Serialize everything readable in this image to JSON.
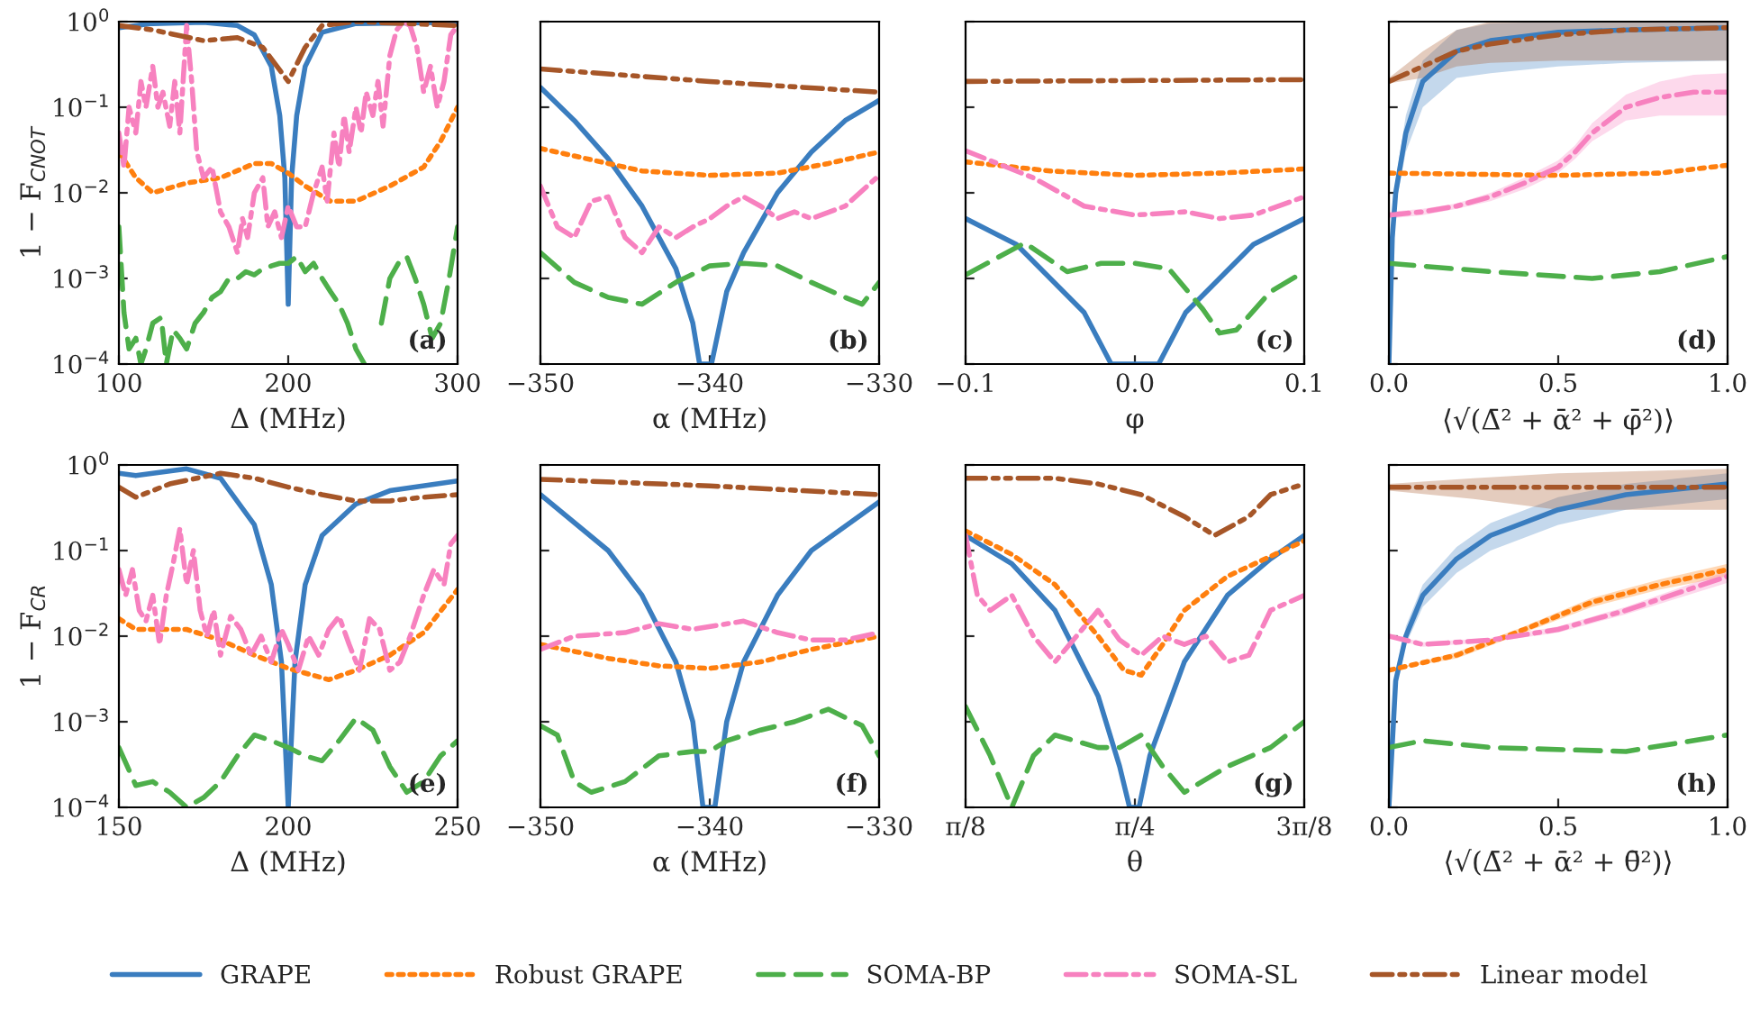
{
  "chart_data": [
    {
      "type": "line",
      "log": "y",
      "xlabel": "Δ (MHz)",
      "ylabel": "1 − F$_{CNOT}$",
      "xlim": [
        100,
        300
      ],
      "xticks": [
        100,
        200,
        300
      ],
      "ylim": [
        0.0001,
        1
      ],
      "yticks": [
        {
          "value": 1,
          "label": "10$^{0}$"
        },
        {
          "value": 0.1,
          "label": "10$^{−1}$"
        },
        {
          "value": 0.01,
          "label": "10$^{−2}$"
        },
        {
          "value": 0.001,
          "label": "10$^{−3}$"
        },
        {
          "value": 0.0001,
          "label": "10$^{−4}$"
        }
      ],
      "legend": "bottom",
      "annotations": [
        "(a)"
      ],
      "series": [
        {
          "name": "GRAPE",
          "color": "#3a7dbf",
          "line_style": "solid",
          "x": [
            100,
            120,
            150,
            170,
            180,
            190,
            195,
            198,
            200,
            202,
            205,
            210,
            220,
            240,
            300
          ],
          "values": [
            0.85,
            0.95,
            0.98,
            0.9,
            0.7,
            0.3,
            0.08,
            0.015,
            0.0005,
            0.015,
            0.08,
            0.3,
            0.75,
            0.95,
            0.98
          ]
        },
        {
          "name": "Robust GRAPE",
          "color": "#ff7f0e",
          "line_style": "dotted",
          "x": [
            100,
            110,
            120,
            140,
            160,
            180,
            190,
            200,
            210,
            225,
            240,
            260,
            280,
            290,
            300
          ],
          "values": [
            0.03,
            0.015,
            0.01,
            0.013,
            0.015,
            0.022,
            0.022,
            0.017,
            0.012,
            0.008,
            0.008,
            0.012,
            0.02,
            0.04,
            0.1
          ]
        },
        {
          "name": "SOMA-BP",
          "color": "#4daf4a",
          "line_style": "dashed",
          "x": [
            100,
            103,
            106,
            110,
            113,
            116,
            120,
            125,
            128,
            132,
            136,
            140,
            145,
            150,
            155,
            160,
            165,
            170,
            175,
            180,
            185,
            190,
            195,
            200,
            205,
            210,
            215,
            220,
            225,
            230,
            235,
            240,
            245,
            250,
            255,
            260,
            265,
            270,
            275,
            280,
            285,
            290,
            295,
            300
          ],
          "values": [
            0.004,
            0.0004,
            0.00015,
            0.0002,
            0.0001,
            0.00015,
            0.0003,
            0.00035,
            0.0001,
            0.00025,
            0.0002,
            0.00015,
            0.0003,
            0.0004,
            0.0006,
            0.0007,
            0.001,
            0.001,
            0.0012,
            0.0011,
            0.0013,
            0.0014,
            0.0015,
            0.0015,
            0.0018,
            0.0012,
            0.0015,
            0.001,
            0.0007,
            0.0005,
            0.0003,
            0.00015,
            0.0001,
            null,
            0.0003,
            0.001,
            0.0015,
            0.0018,
            0.001,
            0.0005,
            0.0002,
            0.0003,
            0.001,
            0.004
          ]
        },
        {
          "name": "SOMA-SL",
          "color": "#f781bf",
          "line_style": "dashdot",
          "x": [
            100,
            103,
            106,
            110,
            113,
            116,
            120,
            123,
            126,
            130,
            133,
            136,
            140,
            143,
            146,
            150,
            155,
            160,
            165,
            170,
            173,
            176,
            180,
            185,
            188,
            192,
            196,
            200,
            205,
            210,
            215,
            220,
            223,
            227,
            230,
            233,
            236,
            240,
            243,
            246,
            250,
            253,
            256,
            260,
            264,
            268,
            272,
            276,
            280,
            284,
            288,
            292,
            296,
            300
          ],
          "values": [
            0.05,
            0.02,
            0.1,
            0.05,
            0.2,
            0.1,
            0.3,
            0.1,
            0.15,
            0.06,
            0.2,
            0.05,
            0.9,
            0.2,
            0.03,
            0.015,
            0.02,
            0.006,
            0.004,
            0.002,
            0.005,
            0.003,
            0.01,
            0.015,
            0.004,
            0.006,
            0.003,
            0.007,
            0.004,
            0.004,
            0.01,
            0.02,
            0.008,
            0.05,
            0.02,
            0.08,
            0.03,
            0.1,
            0.05,
            0.15,
            0.08,
            0.2,
            0.06,
            0.4,
            0.8,
            1.0,
            0.9,
            0.5,
            0.15,
            0.3,
            0.1,
            0.2,
            0.7,
            0.9
          ]
        },
        {
          "name": "Linear model",
          "color": "#a65628",
          "line_style": "dashdotdot",
          "x": [
            100,
            120,
            150,
            170,
            185,
            200,
            210,
            220,
            240,
            300
          ],
          "values": [
            0.9,
            0.8,
            0.6,
            0.65,
            0.5,
            0.2,
            0.5,
            0.9,
            1.0,
            0.9
          ]
        }
      ]
    },
    {
      "type": "line",
      "log": "y",
      "xlabel": "α (MHz)",
      "xlim": [
        -350,
        -330
      ],
      "xticks": [
        {
          "value": -350,
          "label": "−350"
        },
        {
          "value": -340,
          "label": "−340"
        },
        {
          "value": -330,
          "label": "−330"
        }
      ],
      "ylim": [
        0.0001,
        1
      ],
      "yticks": [
        1,
        0.1,
        0.01,
        0.001,
        0.0001
      ],
      "tick_labels": "x",
      "annotations": [
        "(b)"
      ],
      "series": [
        {
          "color": "#3a7dbf",
          "line_style": "solid",
          "x": [
            -350,
            -348,
            -346,
            -344,
            -342,
            -341,
            -340.6,
            -339.9,
            -339,
            -338,
            -336,
            -334,
            -332,
            -330
          ],
          "values": [
            0.17,
            0.07,
            0.025,
            0.007,
            0.0013,
            0.0003,
            0.0001,
            0.0001,
            0.0007,
            0.002,
            0.01,
            0.03,
            0.07,
            0.12
          ]
        },
        {
          "color": "#ff7f0e",
          "line_style": "dotted",
          "x": [
            -350,
            -346,
            -344,
            -340,
            -336,
            -333,
            -330
          ],
          "values": [
            0.033,
            0.022,
            0.018,
            0.016,
            0.017,
            0.022,
            0.03
          ]
        },
        {
          "color": "#4daf4a",
          "line_style": "dashed",
          "x": [
            -350,
            -348,
            -346,
            -344,
            -342,
            -340,
            -338,
            -336,
            -334,
            -332,
            -331,
            -330
          ],
          "values": [
            0.002,
            0.0009,
            0.0006,
            0.0005,
            0.0009,
            0.0014,
            0.0015,
            0.0014,
            0.0009,
            0.0006,
            0.0005,
            0.0009
          ]
        },
        {
          "color": "#f781bf",
          "line_style": "dashdot",
          "x": [
            -350,
            -349,
            -348,
            -347,
            -346,
            -345,
            -344,
            -343,
            -342,
            -341,
            -340,
            -339,
            -338,
            -337,
            -336,
            -335,
            -334,
            -332,
            -330
          ],
          "values": [
            0.012,
            0.004,
            0.003,
            0.008,
            0.009,
            0.003,
            0.002,
            0.004,
            0.003,
            0.004,
            0.005,
            0.007,
            0.009,
            0.007,
            0.005,
            0.006,
            0.005,
            0.007,
            0.016
          ]
        },
        {
          "color": "#a65628",
          "line_style": "dashdotdot",
          "x": [
            -350,
            -340,
            -330
          ],
          "values": [
            0.28,
            0.2,
            0.15
          ]
        }
      ]
    },
    {
      "type": "line",
      "log": "y",
      "xlabel": "φ",
      "xlim": [
        -0.1,
        0.1
      ],
      "xticks": [
        {
          "value": -0.1,
          "label": "−0.1"
        },
        {
          "value": 0,
          "label": "0.0"
        },
        {
          "value": 0.1,
          "label": "0.1"
        }
      ],
      "ylim": [
        0.0001,
        1
      ],
      "yticks": [
        1,
        0.1,
        0.01,
        0.001,
        0.0001
      ],
      "tick_labels": "x",
      "annotations": [
        "(c)"
      ],
      "series": [
        {
          "color": "#3a7dbf",
          "line_style": "solid",
          "x": [
            -0.1,
            -0.07,
            -0.05,
            -0.03,
            -0.014,
            0.014,
            0.03,
            0.05,
            0.07,
            0.1
          ],
          "values": [
            0.005,
            0.0025,
            0.001,
            0.0004,
            0.0001,
            0.0001,
            0.0004,
            0.001,
            0.0025,
            0.005
          ]
        },
        {
          "color": "#ff7f0e",
          "line_style": "dotted",
          "x": [
            -0.1,
            -0.05,
            0,
            0.05,
            0.1
          ],
          "values": [
            0.023,
            0.018,
            0.016,
            0.017,
            0.019
          ]
        },
        {
          "color": "#4daf4a",
          "line_style": "dashed",
          "x": [
            -0.1,
            -0.065,
            -0.04,
            -0.02,
            0,
            0.02,
            0.04,
            0.05,
            0.06,
            0.08,
            0.1
          ],
          "values": [
            0.0011,
            0.0026,
            0.0012,
            0.0015,
            0.0015,
            0.0013,
            0.00044,
            0.00023,
            0.00025,
            0.0007,
            0.0012
          ]
        },
        {
          "color": "#f781bf",
          "line_style": "dashdot",
          "x": [
            -0.1,
            -0.06,
            -0.03,
            0,
            0.03,
            0.05,
            0.07,
            0.1
          ],
          "values": [
            0.031,
            0.015,
            0.007,
            0.0055,
            0.006,
            0.005,
            0.0055,
            0.009
          ]
        },
        {
          "color": "#a65628",
          "line_style": "dashdotdot",
          "x": [
            -0.1,
            0.1
          ],
          "values": [
            0.2,
            0.21
          ]
        }
      ]
    },
    {
      "type": "line",
      "log": "y",
      "xlabel": "⟨√(Δ̄² + ᾱ² + φ̄²)⟩",
      "xlim": [
        0,
        1
      ],
      "xticks": [
        {
          "value": 0,
          "label": "0.0"
        },
        {
          "value": 0.5,
          "label": "0.5"
        },
        {
          "value": 1,
          "label": "1.0"
        }
      ],
      "ylim": [
        0.0001,
        1
      ],
      "yticks": [
        1,
        0.1,
        0.01,
        0.001,
        0.0001
      ],
      "tick_labels": "x",
      "annotations": [
        "(d)"
      ],
      "series": [
        {
          "color": "#3a7dbf",
          "line_style": "solid",
          "x": [
            0,
            0.01,
            0.02,
            0.05,
            0.1,
            0.2,
            0.3,
            0.5,
            0.7,
            1.0
          ],
          "values": [
            0.0001,
            0.003,
            0.01,
            0.05,
            0.2,
            0.45,
            0.6,
            0.75,
            0.8,
            0.85
          ],
          "lower": [
            0.0001,
            0.002,
            0.007,
            0.03,
            0.1,
            0.22,
            0.25,
            0.3,
            0.33,
            0.35
          ],
          "upper": [
            0.0001,
            0.004,
            0.014,
            0.08,
            0.35,
            0.8,
            0.95,
            1.0,
            1.0,
            1.0
          ]
        },
        {
          "color": "#ff7f0e",
          "line_style": "dotted",
          "x": [
            0,
            0.5,
            0.8,
            1.0
          ],
          "values": [
            0.017,
            0.016,
            0.017,
            0.021
          ]
        },
        {
          "color": "#4daf4a",
          "line_style": "dashed",
          "x": [
            0,
            0.3,
            0.6,
            0.8,
            1.0
          ],
          "values": [
            0.0015,
            0.0012,
            0.001,
            0.0012,
            0.0018
          ]
        },
        {
          "color": "#f781bf",
          "line_style": "dashdot",
          "x": [
            0,
            0.1,
            0.2,
            0.3,
            0.4,
            0.5,
            0.55,
            0.6,
            0.7,
            0.8,
            0.9,
            1.0
          ],
          "values": [
            0.0055,
            0.006,
            0.007,
            0.009,
            0.013,
            0.02,
            0.03,
            0.05,
            0.1,
            0.13,
            0.15,
            0.15
          ],
          "lower": [
            0.005,
            0.0055,
            0.0065,
            0.008,
            0.011,
            0.017,
            0.025,
            0.04,
            0.07,
            0.08,
            0.08,
            0.08
          ],
          "upper": [
            0.006,
            0.0065,
            0.0075,
            0.01,
            0.015,
            0.024,
            0.036,
            0.065,
            0.14,
            0.2,
            0.24,
            0.25
          ]
        },
        {
          "color": "#a65628",
          "line_style": "dashdotdot",
          "x": [
            0,
            0.1,
            0.2,
            0.3,
            0.5,
            0.7,
            1.0
          ],
          "values": [
            0.2,
            0.3,
            0.45,
            0.55,
            0.7,
            0.8,
            0.85
          ],
          "lower": [
            0.19,
            0.22,
            0.3,
            0.33,
            0.35,
            0.35,
            0.35
          ],
          "upper": [
            0.22,
            0.45,
            0.8,
            1.0,
            1.0,
            1.0,
            1.0
          ]
        }
      ]
    },
    {
      "type": "line",
      "log": "y",
      "xlabel": "Δ (MHz)",
      "ylabel": "1 − F$_{CR}$",
      "xlim": [
        150,
        250
      ],
      "xticks": [
        150,
        200,
        250
      ],
      "ylim": [
        0.0001,
        1
      ],
      "yticks": [
        {
          "value": 1,
          "label": "10$^{0}$"
        },
        {
          "value": 0.1,
          "label": "10$^{−1}$"
        },
        {
          "value": 0.01,
          "label": "10$^{−2}$"
        },
        {
          "value": 0.001,
          "label": "10$^{−3}$"
        },
        {
          "value": 0.0001,
          "label": "10$^{−4}$"
        }
      ],
      "annotations": [
        "(e)"
      ],
      "series": [
        {
          "color": "#3a7dbf",
          "line_style": "solid",
          "x": [
            150,
            155,
            170,
            180,
            190,
            195,
            198,
            200,
            202,
            205,
            210,
            220,
            230,
            250
          ],
          "values": [
            0.8,
            0.75,
            0.9,
            0.7,
            0.2,
            0.04,
            0.005,
            0.0001,
            0.005,
            0.04,
            0.15,
            0.35,
            0.5,
            0.65
          ]
        },
        {
          "color": "#ff7f0e",
          "line_style": "dotted",
          "x": [
            150,
            155,
            170,
            180,
            190,
            200,
            205,
            212,
            220,
            230,
            240,
            250
          ],
          "values": [
            0.016,
            0.012,
            0.012,
            0.009,
            0.006,
            0.0042,
            0.0037,
            0.0031,
            0.004,
            0.006,
            0.011,
            0.035
          ]
        },
        {
          "color": "#4daf4a",
          "line_style": "dashed",
          "x": [
            150,
            155,
            160,
            165,
            170,
            175,
            180,
            185,
            190,
            195,
            200,
            205,
            210,
            215,
            220,
            225,
            230,
            235,
            240,
            245,
            250
          ],
          "values": [
            0.0005,
            0.00018,
            0.0002,
            0.00015,
            0.0001,
            0.00013,
            0.0002,
            0.0004,
            0.0007,
            0.0006,
            0.0005,
            0.0004,
            0.00035,
            0.0006,
            0.0011,
            0.0008,
            0.0003,
            0.00015,
            0.0002,
            0.0004,
            0.0006
          ]
        },
        {
          "color": "#f781bf",
          "line_style": "dashdot",
          "x": [
            150,
            152,
            154,
            156,
            158,
            160,
            162,
            164,
            166,
            168,
            170,
            172,
            174,
            176,
            178,
            180,
            183,
            186,
            189,
            192,
            195,
            198,
            200,
            203,
            206,
            209,
            212,
            215,
            218,
            221,
            224,
            227,
            230,
            233,
            236,
            240,
            243,
            246,
            248,
            250
          ],
          "values": [
            0.06,
            0.03,
            0.06,
            0.02,
            0.015,
            0.03,
            0.008,
            0.03,
            0.07,
            0.18,
            0.04,
            0.1,
            0.02,
            0.01,
            0.02,
            0.006,
            0.017,
            0.012,
            0.006,
            0.01,
            0.005,
            0.012,
            0.008,
            0.004,
            0.01,
            0.006,
            0.012,
            0.017,
            0.008,
            0.004,
            0.016,
            0.012,
            0.004,
            0.005,
            0.01,
            0.03,
            0.06,
            0.04,
            0.12,
            0.15
          ]
        },
        {
          "color": "#a65628",
          "line_style": "dashdotdot",
          "x": [
            150,
            155,
            165,
            180,
            190,
            200,
            210,
            220,
            230,
            240,
            250
          ],
          "values": [
            0.55,
            0.42,
            0.6,
            0.8,
            0.7,
            0.55,
            0.45,
            0.38,
            0.38,
            0.42,
            0.45
          ]
        }
      ]
    },
    {
      "type": "line",
      "log": "y",
      "xlabel": "α (MHz)",
      "xlim": [
        -350,
        -330
      ],
      "xticks": [
        {
          "value": -350,
          "label": "−350"
        },
        {
          "value": -340,
          "label": "−340"
        },
        {
          "value": -330,
          "label": "−330"
        }
      ],
      "ylim": [
        0.0001,
        1
      ],
      "yticks": [
        1,
        0.1,
        0.01,
        0.001,
        0.0001
      ],
      "tick_labels": "x",
      "annotations": [
        "(f)"
      ],
      "series": [
        {
          "color": "#3a7dbf",
          "line_style": "solid",
          "x": [
            -350,
            -346,
            -344,
            -342,
            -341,
            -340.4,
            -339.7,
            -339,
            -338,
            -336,
            -334,
            -330
          ],
          "values": [
            0.45,
            0.1,
            0.03,
            0.005,
            0.001,
            0.0001,
            0.0001,
            0.001,
            0.005,
            0.03,
            0.1,
            0.37
          ]
        },
        {
          "color": "#ff7f0e",
          "line_style": "dotted",
          "x": [
            -350,
            -346,
            -343,
            -340,
            -337,
            -334,
            -330
          ],
          "values": [
            0.008,
            0.0055,
            0.0045,
            0.0042,
            0.005,
            0.007,
            0.01
          ]
        },
        {
          "color": "#4daf4a",
          "line_style": "dashed",
          "x": [
            -350,
            -349,
            -348,
            -347,
            -345,
            -343,
            -341,
            -340,
            -339,
            -337,
            -335,
            -333,
            -331,
            -330
          ],
          "values": [
            0.0009,
            0.0007,
            0.0002,
            0.00015,
            0.0002,
            0.0004,
            0.00045,
            0.00045,
            0.0006,
            0.0008,
            0.001,
            0.0014,
            0.0009,
            0.0004
          ]
        },
        {
          "color": "#f781bf",
          "line_style": "dashdot",
          "x": [
            -350,
            -348,
            -345,
            -343,
            -341,
            -338,
            -336,
            -334,
            -332,
            -330
          ],
          "values": [
            0.007,
            0.01,
            0.011,
            0.014,
            0.012,
            0.015,
            0.011,
            0.009,
            0.009,
            0.011
          ]
        },
        {
          "color": "#a65628",
          "line_style": "dashdotdot",
          "x": [
            -350,
            -340,
            -330
          ],
          "values": [
            0.68,
            0.57,
            0.45
          ]
        }
      ]
    },
    {
      "type": "line",
      "log": "y",
      "xlabel": "θ",
      "xlim": [
        0.3927,
        1.1781
      ],
      "xticks": [
        {
          "value": 0.3927,
          "label": "π/8"
        },
        {
          "value": 0.7854,
          "label": "π/4"
        },
        {
          "value": 1.1781,
          "label": "3π/8"
        }
      ],
      "ylim": [
        0.0001,
        1
      ],
      "yticks": [
        1,
        0.1,
        0.01,
        0.001,
        0.0001
      ],
      "tick_labels": "x",
      "annotations": [
        "(g)"
      ],
      "series": [
        {
          "color": "#3a7dbf",
          "line_style": "solid",
          "x": [
            0.3927,
            0.5,
            0.6,
            0.7,
            0.75,
            0.773,
            0.795,
            0.82,
            0.9,
            1.0,
            1.1,
            1.1781
          ],
          "values": [
            0.15,
            0.07,
            0.02,
            0.002,
            0.0003,
            0.0001,
            0.0001,
            0.0004,
            0.005,
            0.03,
            0.08,
            0.15
          ]
        },
        {
          "color": "#ff7f0e",
          "line_style": "dotted",
          "x": [
            0.3927,
            0.5,
            0.6,
            0.7,
            0.76,
            0.8,
            0.85,
            0.9,
            1.0,
            1.1781
          ],
          "values": [
            0.17,
            0.09,
            0.04,
            0.01,
            0.004,
            0.0035,
            0.008,
            0.02,
            0.05,
            0.13
          ]
        },
        {
          "color": "#4daf4a",
          "line_style": "dashed",
          "x": [
            0.3927,
            0.45,
            0.5,
            0.55,
            0.6,
            0.7,
            0.75,
            0.8,
            0.85,
            0.9,
            1.0,
            1.1,
            1.1781
          ],
          "values": [
            0.0015,
            0.0004,
            0.0001,
            0.0004,
            0.0007,
            0.0005,
            0.0005,
            0.0007,
            0.0003,
            0.00015,
            0.0003,
            0.0005,
            0.001
          ]
        },
        {
          "color": "#f781bf",
          "line_style": "dashdot",
          "x": [
            0.3927,
            0.42,
            0.45,
            0.5,
            0.55,
            0.6,
            0.65,
            0.7,
            0.75,
            0.8,
            0.85,
            0.9,
            0.95,
            1.0,
            1.05,
            1.1,
            1.1781
          ],
          "values": [
            0.15,
            0.03,
            0.02,
            0.03,
            0.01,
            0.005,
            0.01,
            0.02,
            0.009,
            0.006,
            0.01,
            0.008,
            0.01,
            0.005,
            0.006,
            0.02,
            0.03
          ]
        },
        {
          "color": "#a65628",
          "line_style": "dashdotdot",
          "x": [
            0.3927,
            0.6,
            0.7,
            0.8,
            0.9,
            0.97,
            1.05,
            1.1,
            1.1781
          ],
          "values": [
            0.7,
            0.7,
            0.6,
            0.45,
            0.25,
            0.15,
            0.25,
            0.45,
            0.6
          ]
        }
      ]
    },
    {
      "type": "line",
      "log": "y",
      "xlabel": "⟨√(Δ̄² + ᾱ² + θ̄²)⟩",
      "xlim": [
        0,
        1
      ],
      "xticks": [
        {
          "value": 0,
          "label": "0.0"
        },
        {
          "value": 0.5,
          "label": "0.5"
        },
        {
          "value": 1,
          "label": "1.0"
        }
      ],
      "ylim": [
        0.0001,
        1
      ],
      "yticks": [
        1,
        0.1,
        0.01,
        0.001,
        0.0001
      ],
      "tick_labels": "x",
      "annotations": [
        "(h)"
      ],
      "series": [
        {
          "color": "#3a7dbf",
          "line_style": "solid",
          "x": [
            0,
            0.02,
            0.05,
            0.1,
            0.2,
            0.3,
            0.5,
            0.7,
            1.0
          ],
          "values": [
            0.0001,
            0.003,
            0.01,
            0.03,
            0.08,
            0.15,
            0.3,
            0.45,
            0.6
          ],
          "lower": [
            0.0001,
            0.0025,
            0.008,
            0.022,
            0.055,
            0.1,
            0.2,
            0.3,
            0.4
          ],
          "upper": [
            0.0001,
            0.0035,
            0.013,
            0.04,
            0.11,
            0.21,
            0.42,
            0.6,
            0.8
          ]
        },
        {
          "color": "#ff7f0e",
          "line_style": "dotted",
          "x": [
            0,
            0.2,
            0.4,
            0.6,
            0.8,
            1.0
          ],
          "values": [
            0.004,
            0.006,
            0.012,
            0.025,
            0.04,
            0.06
          ],
          "lower": [
            0.004,
            0.0055,
            0.011,
            0.022,
            0.035,
            0.05
          ],
          "upper": [
            0.004,
            0.0065,
            0.013,
            0.028,
            0.046,
            0.07
          ]
        },
        {
          "color": "#4daf4a",
          "line_style": "dashed",
          "x": [
            0,
            0.1,
            0.3,
            0.7,
            1.0
          ],
          "values": [
            0.0005,
            0.0006,
            0.0005,
            0.00045,
            0.0007
          ]
        },
        {
          "color": "#f781bf",
          "line_style": "dashdot",
          "x": [
            0,
            0.1,
            0.3,
            0.5,
            0.7,
            1.0
          ],
          "values": [
            0.01,
            0.008,
            0.009,
            0.012,
            0.02,
            0.05
          ],
          "lower": [
            0.0095,
            0.0075,
            0.0085,
            0.011,
            0.018,
            0.042
          ],
          "upper": [
            0.0105,
            0.0085,
            0.0095,
            0.013,
            0.022,
            0.058
          ]
        },
        {
          "color": "#a65628",
          "line_style": "dashdotdot",
          "x": [
            0,
            0.25,
            0.5,
            0.75,
            1.0
          ],
          "values": [
            0.55,
            0.55,
            0.55,
            0.55,
            0.55
          ],
          "lower": [
            0.5,
            0.4,
            0.3,
            0.3,
            0.3
          ],
          "upper": [
            0.6,
            0.7,
            0.8,
            0.85,
            0.9
          ]
        }
      ]
    }
  ]
}
